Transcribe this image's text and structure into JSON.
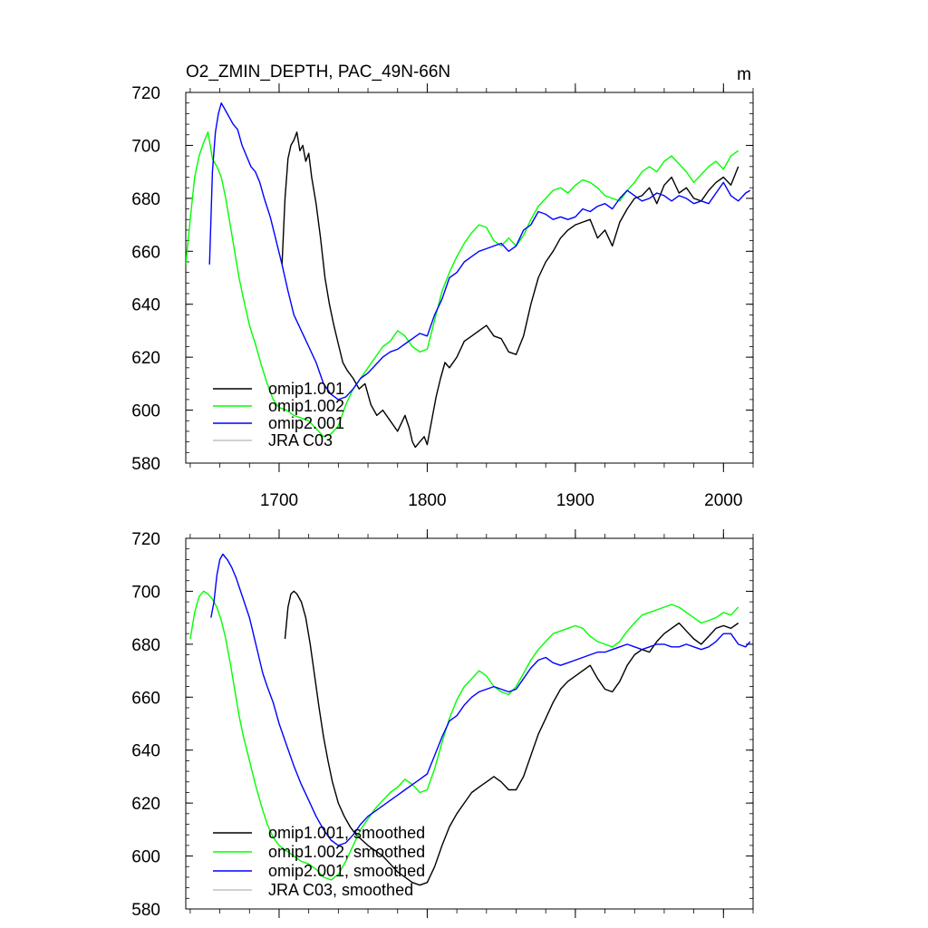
{
  "chart_data": [
    {
      "type": "line",
      "title": "O2_ZMIN_DEPTH, PAC_49N-66N",
      "units": "m",
      "xlabel": "",
      "ylabel": "",
      "xlim": [
        1637,
        2020
      ],
      "ylim": [
        580,
        720
      ],
      "xticks": [
        1700,
        1800,
        1900,
        2000
      ],
      "yticks": [
        580,
        600,
        620,
        640,
        660,
        680,
        700,
        720
      ],
      "legend_position": "bottom-left",
      "series": [
        {
          "name": "omip1.001",
          "color": "#000000",
          "x": [
            1702,
            1704,
            1706,
            1708,
            1710,
            1712,
            1714,
            1716,
            1718,
            1720,
            1722,
            1725,
            1728,
            1731,
            1734,
            1737,
            1740,
            1743,
            1746,
            1750,
            1754,
            1758,
            1762,
            1766,
            1770,
            1775,
            1780,
            1785,
            1788,
            1790,
            1792,
            1795,
            1798,
            1800,
            1803,
            1806,
            1809,
            1812,
            1815,
            1820,
            1825,
            1830,
            1835,
            1840,
            1845,
            1850,
            1855,
            1860,
            1865,
            1870,
            1875,
            1880,
            1885,
            1890,
            1895,
            1900,
            1905,
            1910,
            1915,
            1920,
            1925,
            1930,
            1935,
            1940,
            1945,
            1950,
            1955,
            1960,
            1965,
            1970,
            1975,
            1980,
            1985,
            1990,
            1995,
            2000,
            2005,
            2010
          ],
          "values": [
            655,
            680,
            695,
            700,
            702,
            705,
            698,
            700,
            694,
            697,
            688,
            678,
            665,
            650,
            640,
            632,
            625,
            618,
            615,
            612,
            608,
            610,
            602,
            598,
            600,
            596,
            592,
            598,
            593,
            588,
            586,
            588,
            590,
            587,
            596,
            605,
            612,
            618,
            616,
            620,
            626,
            628,
            630,
            632,
            628,
            627,
            622,
            621,
            628,
            640,
            650,
            656,
            660,
            665,
            668,
            670,
            671,
            672,
            665,
            668,
            662,
            671,
            676,
            680,
            681,
            684,
            678,
            685,
            688,
            682,
            684,
            680,
            679,
            683,
            686,
            688,
            685,
            692
          ]
        },
        {
          "name": "omip1.002",
          "color": "#00ff00",
          "x": [
            1637,
            1640,
            1643,
            1646,
            1649,
            1652,
            1655,
            1658,
            1661,
            1664,
            1667,
            1670,
            1673,
            1676,
            1680,
            1684,
            1688,
            1692,
            1696,
            1700,
            1705,
            1710,
            1715,
            1720,
            1725,
            1730,
            1735,
            1740,
            1745,
            1750,
            1755,
            1760,
            1765,
            1770,
            1775,
            1780,
            1785,
            1790,
            1795,
            1800,
            1805,
            1810,
            1815,
            1820,
            1825,
            1830,
            1835,
            1840,
            1845,
            1850,
            1855,
            1860,
            1865,
            1870,
            1875,
            1880,
            1885,
            1890,
            1895,
            1900,
            1905,
            1910,
            1915,
            1920,
            1925,
            1930,
            1935,
            1940,
            1945,
            1950,
            1955,
            1960,
            1965,
            1970,
            1975,
            1980,
            1985,
            1990,
            1995,
            2000,
            2005,
            2010
          ],
          "values": [
            655,
            672,
            688,
            696,
            701,
            705,
            695,
            692,
            688,
            680,
            670,
            660,
            650,
            642,
            632,
            625,
            617,
            610,
            604,
            601,
            600,
            598,
            597,
            596,
            593,
            590,
            591,
            594,
            602,
            608,
            612,
            616,
            620,
            624,
            626,
            630,
            628,
            624,
            622,
            623,
            634,
            645,
            652,
            658,
            663,
            667,
            670,
            669,
            664,
            662,
            665,
            662,
            666,
            672,
            677,
            680,
            683,
            684,
            682,
            685,
            687,
            686,
            684,
            681,
            680,
            679,
            683,
            686,
            690,
            692,
            690,
            694,
            696,
            693,
            690,
            686,
            689,
            692,
            694,
            691,
            696,
            698
          ]
        },
        {
          "name": "omip2.001",
          "color": "#0000ff",
          "x": [
            1653,
            1655,
            1657,
            1659,
            1661,
            1663,
            1665,
            1667,
            1669,
            1672,
            1675,
            1678,
            1681,
            1684,
            1687,
            1690,
            1694,
            1698,
            1702,
            1706,
            1710,
            1715,
            1720,
            1725,
            1730,
            1735,
            1740,
            1745,
            1750,
            1755,
            1760,
            1765,
            1770,
            1775,
            1780,
            1785,
            1790,
            1795,
            1800,
            1805,
            1810,
            1815,
            1820,
            1825,
            1830,
            1835,
            1840,
            1845,
            1850,
            1855,
            1860,
            1865,
            1870,
            1875,
            1880,
            1885,
            1890,
            1895,
            1900,
            1905,
            1910,
            1915,
            1920,
            1925,
            1930,
            1935,
            1940,
            1945,
            1950,
            1955,
            1960,
            1965,
            1970,
            1975,
            1980,
            1985,
            1990,
            1995,
            2000,
            2005,
            2010,
            2015,
            2018
          ],
          "values": [
            655,
            690,
            705,
            712,
            716,
            714,
            712,
            710,
            708,
            706,
            700,
            696,
            692,
            690,
            686,
            680,
            673,
            664,
            655,
            645,
            636,
            630,
            624,
            618,
            610,
            606,
            604,
            605,
            608,
            612,
            614,
            617,
            620,
            622,
            623,
            625,
            627,
            629,
            628,
            636,
            642,
            650,
            652,
            656,
            658,
            660,
            661,
            662,
            663,
            660,
            662,
            668,
            670,
            675,
            674,
            672,
            673,
            672,
            673,
            676,
            675,
            677,
            678,
            676,
            680,
            683,
            681,
            679,
            680,
            682,
            681,
            679,
            681,
            680,
            678,
            679,
            678,
            682,
            686,
            681,
            679,
            682,
            683
          ]
        },
        {
          "name": "JRA C03",
          "color": "#c0c0c0",
          "x": [],
          "values": []
        }
      ]
    },
    {
      "type": "line",
      "title": "",
      "units": "",
      "xlabel": "",
      "ylabel": "",
      "xlim": [
        1637,
        2020
      ],
      "ylim": [
        580,
        720
      ],
      "xticks": [
        1700,
        1800,
        1900,
        2000
      ],
      "yticks": [
        580,
        600,
        620,
        640,
        660,
        680,
        700,
        720
      ],
      "legend_position": "bottom-left",
      "series": [
        {
          "name": "omip1.001, smoothed",
          "color": "#000000",
          "x": [
            1704,
            1706,
            1708,
            1710,
            1712,
            1715,
            1718,
            1721,
            1724,
            1727,
            1730,
            1733,
            1736,
            1740,
            1744,
            1748,
            1752,
            1756,
            1760,
            1765,
            1770,
            1775,
            1780,
            1785,
            1790,
            1795,
            1800,
            1805,
            1810,
            1815,
            1820,
            1825,
            1830,
            1835,
            1840,
            1845,
            1850,
            1855,
            1860,
            1865,
            1870,
            1875,
            1880,
            1885,
            1890,
            1895,
            1900,
            1905,
            1910,
            1915,
            1920,
            1925,
            1930,
            1935,
            1940,
            1945,
            1950,
            1955,
            1960,
            1965,
            1970,
            1975,
            1980,
            1985,
            1990,
            1995,
            2000,
            2005,
            2010
          ],
          "values": [
            682,
            694,
            699,
            700,
            699,
            696,
            690,
            680,
            668,
            656,
            645,
            636,
            628,
            620,
            615,
            611,
            608,
            606,
            604,
            602,
            600,
            597,
            594,
            592,
            590,
            589,
            590,
            596,
            604,
            611,
            616,
            620,
            624,
            626,
            628,
            630,
            628,
            625,
            625,
            630,
            638,
            646,
            652,
            658,
            663,
            666,
            668,
            670,
            672,
            667,
            663,
            662,
            666,
            672,
            676,
            678,
            677,
            681,
            684,
            686,
            688,
            685,
            682,
            680,
            683,
            686,
            687,
            686,
            688
          ]
        },
        {
          "name": "omip1.002, smoothed",
          "color": "#00ff00",
          "x": [
            1640,
            1643,
            1646,
            1649,
            1652,
            1655,
            1658,
            1661,
            1664,
            1667,
            1670,
            1673,
            1676,
            1680,
            1684,
            1688,
            1692,
            1696,
            1700,
            1705,
            1710,
            1715,
            1720,
            1725,
            1730,
            1735,
            1740,
            1745,
            1750,
            1755,
            1760,
            1765,
            1770,
            1775,
            1780,
            1785,
            1790,
            1795,
            1800,
            1805,
            1810,
            1815,
            1820,
            1825,
            1830,
            1835,
            1840,
            1845,
            1850,
            1855,
            1860,
            1865,
            1870,
            1875,
            1880,
            1885,
            1890,
            1895,
            1900,
            1905,
            1910,
            1915,
            1920,
            1925,
            1930,
            1935,
            1940,
            1945,
            1950,
            1955,
            1960,
            1965,
            1970,
            1975,
            1980,
            1985,
            1990,
            1995,
            2000,
            2005,
            2010
          ],
          "values": [
            682,
            692,
            698,
            700,
            699,
            697,
            694,
            689,
            682,
            673,
            663,
            653,
            645,
            636,
            627,
            619,
            612,
            607,
            604,
            602,
            600,
            598,
            597,
            595,
            592,
            591,
            593,
            598,
            604,
            610,
            614,
            618,
            621,
            624,
            626,
            629,
            627,
            624,
            625,
            633,
            643,
            652,
            659,
            664,
            667,
            670,
            668,
            664,
            662,
            661,
            664,
            669,
            674,
            678,
            681,
            684,
            685,
            686,
            687,
            686,
            683,
            681,
            680,
            679,
            681,
            685,
            688,
            691,
            692,
            693,
            694,
            695,
            694,
            692,
            690,
            688,
            689,
            690,
            692,
            691,
            694
          ]
        },
        {
          "name": "omip2.001, smoothed",
          "color": "#0000ff",
          "x": [
            1654,
            1656,
            1658,
            1660,
            1662,
            1665,
            1668,
            1671,
            1674,
            1677,
            1680,
            1683,
            1686,
            1689,
            1692,
            1696,
            1700,
            1705,
            1710,
            1715,
            1720,
            1725,
            1730,
            1735,
            1740,
            1745,
            1750,
            1755,
            1760,
            1765,
            1770,
            1775,
            1780,
            1785,
            1790,
            1795,
            1800,
            1805,
            1810,
            1815,
            1820,
            1825,
            1830,
            1835,
            1840,
            1845,
            1850,
            1855,
            1860,
            1865,
            1870,
            1875,
            1880,
            1885,
            1890,
            1895,
            1900,
            1905,
            1910,
            1915,
            1920,
            1925,
            1930,
            1935,
            1940,
            1945,
            1950,
            1955,
            1960,
            1965,
            1970,
            1975,
            1980,
            1985,
            1990,
            1995,
            2000,
            2005,
            2010,
            2015,
            2018
          ],
          "values": [
            690,
            696,
            706,
            712,
            714,
            712,
            709,
            705,
            700,
            695,
            690,
            683,
            676,
            669,
            664,
            658,
            650,
            642,
            634,
            627,
            621,
            615,
            610,
            606,
            604,
            605,
            608,
            612,
            615,
            617,
            619,
            621,
            623,
            625,
            627,
            629,
            631,
            638,
            645,
            651,
            653,
            657,
            660,
            662,
            663,
            664,
            663,
            662,
            663,
            667,
            671,
            674,
            675,
            673,
            672,
            673,
            674,
            675,
            676,
            677,
            677,
            678,
            679,
            680,
            679,
            678,
            679,
            680,
            680,
            679,
            679,
            680,
            679,
            678,
            679,
            681,
            684,
            684,
            680,
            679,
            681
          ]
        },
        {
          "name": "JRA C03, smoothed",
          "color": "#c0c0c0",
          "x": [],
          "values": []
        }
      ]
    }
  ]
}
